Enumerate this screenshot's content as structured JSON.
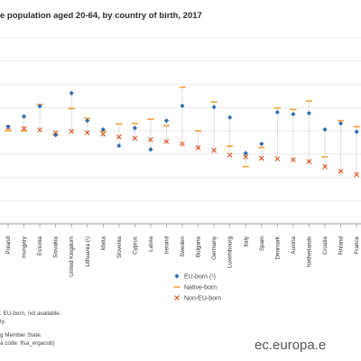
{
  "chart_data": {
    "type": "scatter",
    "title": "e population aged 20-64, by country of birth, 2017",
    "categories": [
      "Poland",
      "Hungary",
      "Estonia",
      "Slovakia",
      "United Kingdom",
      "Lithuania (¹)",
      "Malta",
      "Slovenia",
      "Cyprus",
      "Latvia",
      "Ireland",
      "Sweden",
      "Bulgaria",
      "Germany",
      "Luxembourg",
      "Italy",
      "Spain",
      "Denmark",
      "Austria",
      "Netherlands",
      "Croatia",
      "Finland",
      "France"
    ],
    "ylim": [
      50,
      90
    ],
    "grid": true,
    "legend_position": "bottom-right",
    "series": [
      {
        "name": "EU-born (¹)",
        "color": "#2e6fb3",
        "marker": "diamond",
        "values": [
          70.9,
          73.1,
          75.3,
          69.1,
          78.1,
          72.2,
          70.3,
          66.8,
          70.6,
          66.0,
          72.2,
          75.4,
          null,
          75.1,
          72.9,
          65.2,
          67.2,
          74.0,
          73.6,
          73.8,
          70.3,
          71.6,
          69.8
        ]
      },
      {
        "name": "Native-born",
        "color": "#f2a23a",
        "marker": "dash",
        "values": [
          70.0,
          70.0,
          75.7,
          69.2,
          74.8,
          72.7,
          69.9,
          71.5,
          71.6,
          72.5,
          71.1,
          79.4,
          70.0,
          76.2,
          66.7,
          62.3,
          66.4,
          74.9,
          74.6,
          76.4,
          64.4,
          72.2,
          70.9
        ]
      },
      {
        "name": "Non-EU-born",
        "color": "#e05a2b",
        "marker": "cross",
        "values": [
          70.7,
          70.5,
          70.2,
          69.6,
          69.9,
          69.6,
          69.3,
          68.7,
          68.4,
          68.1,
          67.7,
          67.2,
          66.4,
          65.8,
          64.8,
          64.4,
          64.1,
          64.0,
          63.8,
          63.4,
          62.3,
          61.3,
          60.6
        ]
      }
    ]
  },
  "notes": [
    ": EU-born, not available.",
    "ty.",
    "g Member State.",
    "a code: lfsa_ergacob)"
  ],
  "source_url": "ec.europa.e"
}
